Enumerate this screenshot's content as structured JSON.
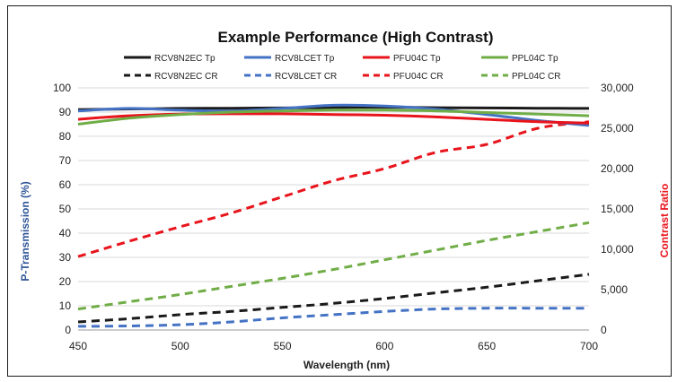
{
  "chart_data": {
    "type": "line",
    "title": "Example Performance (High Contrast)",
    "xlabel": "Wavelength (nm)",
    "ylabel": "P-Transmission  (%)",
    "y2label": "Contrast Ratio",
    "xlim": [
      450,
      700
    ],
    "ylim": [
      0,
      100
    ],
    "y2lim": [
      0,
      30000
    ],
    "x_ticks": [
      "450",
      "500",
      "550",
      "600",
      "650",
      "700"
    ],
    "y_ticks": [
      "0",
      "10",
      "20",
      "30",
      "40",
      "50",
      "60",
      "70",
      "80",
      "90",
      "100"
    ],
    "y2_ticks": [
      "0",
      "5,000",
      "10,000",
      "15,000",
      "20,000",
      "25,000",
      "30,000"
    ],
    "grid": "horizontal",
    "legend_position": "top",
    "series": [
      {
        "name": "RCV8N2EC Tp",
        "axis": "left",
        "style": "solid",
        "color": "#1a1a1a",
        "x": [
          450,
          475,
          500,
          525,
          550,
          575,
          600,
          625,
          650,
          675,
          700
        ],
        "y": [
          91.0,
          91.3,
          91.5,
          91.6,
          91.7,
          91.9,
          92.0,
          91.8,
          91.7,
          91.6,
          91.5
        ]
      },
      {
        "name": "RCV8LCET Tp",
        "axis": "left",
        "style": "solid",
        "color": "#4472c4",
        "x": [
          450,
          475,
          500,
          525,
          550,
          575,
          600,
          625,
          650,
          675,
          700
        ],
        "y": [
          90.5,
          91.5,
          90.8,
          90.5,
          91.5,
          92.8,
          92.5,
          91.2,
          89.0,
          86.5,
          84.5
        ]
      },
      {
        "name": "PFU04C Tp",
        "axis": "left",
        "style": "solid",
        "color": "#e8141c",
        "x": [
          450,
          475,
          500,
          525,
          550,
          575,
          600,
          625,
          650,
          675,
          700
        ],
        "y": [
          87.0,
          88.5,
          89.2,
          89.3,
          89.3,
          89.0,
          88.7,
          88.0,
          87.0,
          86.0,
          85.5
        ]
      },
      {
        "name": "PPL04C Tp",
        "axis": "left",
        "style": "solid",
        "color": "#70ad47",
        "x": [
          450,
          475,
          500,
          525,
          550,
          575,
          600,
          625,
          650,
          675,
          700
        ],
        "y": [
          85.0,
          87.5,
          89.0,
          90.0,
          90.5,
          90.8,
          90.8,
          90.5,
          89.8,
          89.2,
          88.5
        ]
      },
      {
        "name": "RCV8N2EC CR",
        "axis": "right",
        "style": "dashed",
        "color": "#1a1a1a",
        "x": [
          450,
          475,
          500,
          525,
          550,
          575,
          600,
          625,
          650,
          675,
          700
        ],
        "y": [
          1000,
          1400,
          1900,
          2300,
          2800,
          3300,
          3900,
          4600,
          5300,
          6100,
          6900
        ]
      },
      {
        "name": "RCV8LCET CR",
        "axis": "right",
        "style": "dashed",
        "color": "#4472c4",
        "x": [
          450,
          475,
          500,
          525,
          550,
          575,
          600,
          625,
          650,
          675,
          700
        ],
        "y": [
          450,
          500,
          650,
          1000,
          1500,
          1900,
          2300,
          2600,
          2700,
          2700,
          2700
        ]
      },
      {
        "name": "PFU04C CR",
        "axis": "right",
        "style": "dashed",
        "color": "#e8141c",
        "x": [
          450,
          475,
          500,
          525,
          550,
          575,
          600,
          625,
          650,
          675,
          700
        ],
        "y": [
          9100,
          11000,
          12800,
          14500,
          16500,
          18500,
          20000,
          22000,
          23000,
          25000,
          25800
        ]
      },
      {
        "name": "PPL04C CR",
        "axis": "right",
        "style": "dashed",
        "color": "#70ad47",
        "x": [
          450,
          475,
          500,
          525,
          550,
          575,
          600,
          625,
          650,
          675,
          700
        ],
        "y": [
          2600,
          3500,
          4400,
          5400,
          6400,
          7500,
          8700,
          9900,
          11100,
          12200,
          13300
        ]
      }
    ]
  }
}
